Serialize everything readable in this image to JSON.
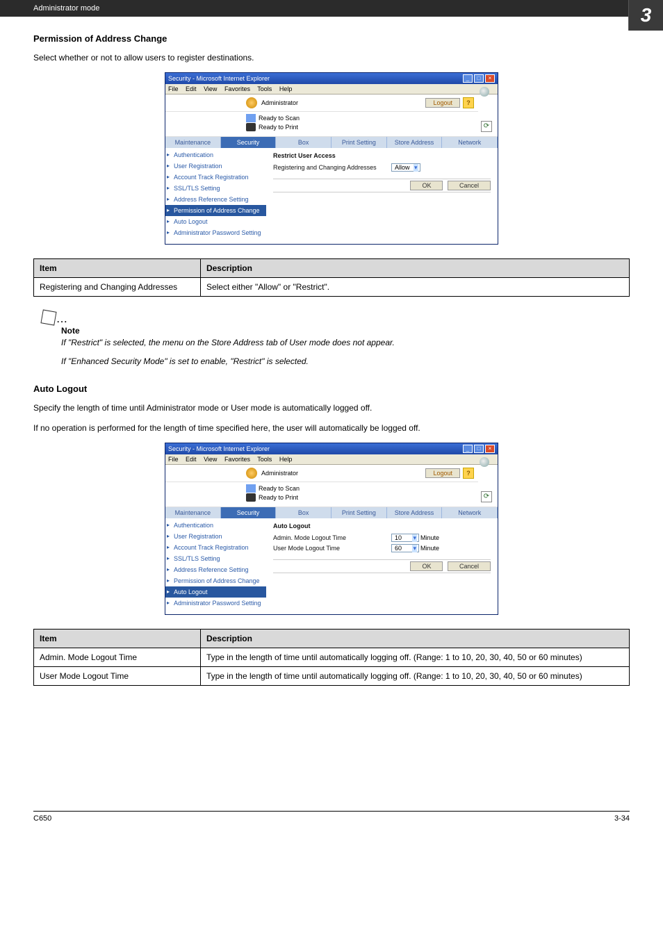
{
  "topbar": {
    "label": "Administrator mode",
    "chapter": "3"
  },
  "section1": {
    "title": "Permission of Address Change",
    "intro": "Select whether or not to allow users to register destinations."
  },
  "screenshot": {
    "window_title": "Security - Microsoft Internet Explorer",
    "menu": {
      "file": "File",
      "edit": "Edit",
      "view": "View",
      "favorites": "Favorites",
      "tools": "Tools",
      "help": "Help"
    },
    "admin_label": "Administrator",
    "logout": "Logout",
    "help": "?",
    "status": {
      "scan": "Ready to Scan",
      "print": "Ready to Print"
    },
    "tabs": [
      "Maintenance",
      "Security",
      "Box",
      "Print Setting",
      "Store Address",
      "Network"
    ],
    "active_tab_index": 1,
    "side_nav": [
      "Authentication",
      "User Registration",
      "Account Track Registration",
      "SSL/TLS Setting",
      "Address Reference Setting",
      "Permission of Address Change",
      "Auto Logout",
      "Administrator Password Setting"
    ],
    "buttons": {
      "ok": "OK",
      "cancel": "Cancel"
    }
  },
  "panel_a": {
    "active_nav_index": 5,
    "heading": "Restrict User Access",
    "field_label": "Registering and Changing Addresses",
    "field_value": "Allow"
  },
  "table1": {
    "head_item": "Item",
    "head_desc": "Description",
    "rows": [
      {
        "item": "Registering and Changing Addresses",
        "desc": "Select either \"Allow\" or \"Restrict\"."
      }
    ]
  },
  "note": {
    "title": "Note",
    "line1": "If \"Restrict\" is selected, the menu on the Store Address tab of User mode does not appear.",
    "line2": "If \"Enhanced Security Mode\" is set to enable, \"Restrict\" is selected."
  },
  "section2": {
    "title": "Auto Logout",
    "intro1": "Specify the length of time until Administrator mode or User mode is automatically logged off.",
    "intro2": "If no operation is performed for the length of time specified here, the user will automatically be logged off."
  },
  "panel_b": {
    "active_nav_index": 6,
    "heading": "Auto Logout",
    "row1_label": "Admin. Mode Logout Time",
    "row1_value": "10",
    "row1_unit": "Minute",
    "row2_label": "User Mode Logout Time",
    "row2_value": "60",
    "row2_unit": "Minute"
  },
  "table2": {
    "head_item": "Item",
    "head_desc": "Description",
    "rows": [
      {
        "item": "Admin. Mode Logout Time",
        "desc": "Type in the length of time until automatically logging off. (Range: 1 to 10, 20, 30, 40, 50 or 60 minutes)"
      },
      {
        "item": "User Mode Logout Time",
        "desc": "Type in the length of time until automatically logging off. (Range: 1 to 10, 20, 30, 40, 50 or 60 minutes)"
      }
    ]
  },
  "footer": {
    "left": "C650",
    "right": "3-34"
  },
  "colors": {
    "page_dark": "#2b2b2b",
    "tab_bg": "#6a92c9",
    "tab_active": "#3c6cb5",
    "link": "#2a5aa8"
  }
}
